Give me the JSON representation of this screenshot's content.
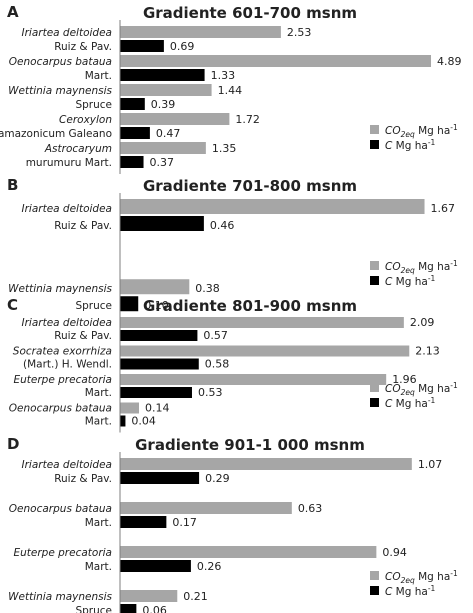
{
  "legend": {
    "co2_label": "CO",
    "co2_sub": "2eq",
    "co2_unit": "Mg ha",
    "c_label": "C",
    "c_unit": "Mg ha",
    "exponent": "-1"
  },
  "colors": {
    "co2": "#a6a6a6",
    "c": "#000000",
    "text": "#222222",
    "axis": "#7f7f7f"
  },
  "chart_data": [
    {
      "panel": "A",
      "type": "bar",
      "orientation": "horizontal",
      "title": "Gradiente 601-700 msnm",
      "xlim": [
        0,
        5
      ],
      "legend_position": "bottom-right",
      "categories": [
        [
          "Iriartea deltoidea",
          "Ruiz & Pav."
        ],
        [
          "Oenocarpus bataua",
          "Mart."
        ],
        [
          "Wettinia maynensis",
          "Spruce"
        ],
        [
          "Ceroxylon",
          "amazonicum Galeano"
        ],
        [
          "Astrocaryum",
          "murumuru Mart."
        ]
      ],
      "series": [
        {
          "name": "CO2eq Mg ha-1",
          "values": [
            2.53,
            4.89,
            1.44,
            1.72,
            1.35
          ]
        },
        {
          "name": "C Mg ha-1",
          "values": [
            0.69,
            1.33,
            0.39,
            0.47,
            0.37
          ]
        }
      ]
    },
    {
      "panel": "B",
      "type": "bar",
      "orientation": "horizontal",
      "title": "Gradiente 701-800 msnm",
      "xlim": [
        0,
        1.7
      ],
      "legend_position": "bottom-right",
      "categories": [
        [
          "Iriartea deltoidea",
          "Ruiz & Pav."
        ],
        [
          "Wettinia maynensis",
          "Spruce"
        ]
      ],
      "series": [
        {
          "name": "CO2eq Mg ha-1",
          "values": [
            1.67,
            0.38
          ]
        },
        {
          "name": "C Mg ha-1",
          "values": [
            0.46,
            0.1
          ]
        }
      ]
    },
    {
      "panel": "C",
      "type": "bar",
      "orientation": "horizontal",
      "title": "Gradiente 801-900 msnm",
      "xlim": [
        0,
        2.15
      ],
      "legend_position": "bottom-right",
      "categories": [
        [
          "Iriartea deltoidea",
          "Ruiz & Pav."
        ],
        [
          "Socratea exorrhiza",
          "(Mart.) H. Wendl."
        ],
        [
          "Euterpe precatoria",
          "Mart."
        ],
        [
          "Oenocarpus bataua",
          "Mart."
        ]
      ],
      "series": [
        {
          "name": "CO2eq Mg ha-1",
          "values": [
            2.09,
            2.13,
            1.96,
            0.14
          ]
        },
        {
          "name": "C Mg ha-1",
          "values": [
            0.57,
            0.58,
            0.53,
            0.04
          ]
        }
      ]
    },
    {
      "panel": "D",
      "type": "bar",
      "orientation": "horizontal",
      "title": "Gradiente 901-1 000 msnm",
      "xlim": [
        0,
        1.1
      ],
      "legend_position": "bottom-right",
      "categories": [
        [
          "Iriartea deltoidea",
          "Ruiz & Pav."
        ],
        [
          "Oenocarpus bataua",
          "Mart."
        ],
        [
          "Euterpe precatoria",
          "Mart."
        ],
        [
          "Wettinia maynensis",
          "Spruce"
        ]
      ],
      "series": [
        {
          "name": "CO2eq Mg ha-1",
          "values": [
            1.07,
            0.63,
            0.94,
            0.21
          ]
        },
        {
          "name": "C Mg ha-1",
          "values": [
            0.29,
            0.17,
            0.26,
            0.06
          ]
        }
      ]
    }
  ]
}
